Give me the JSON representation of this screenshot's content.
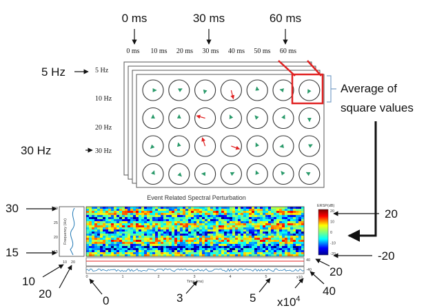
{
  "top_labels": [
    "0 ms",
    "30 ms",
    "60 ms"
  ],
  "time_row": [
    "0 ms",
    "10 ms",
    "20 ms",
    "30 ms",
    "40 ms",
    "50 ms",
    "60 ms"
  ],
  "freq_big": {
    "top": "5 Hz",
    "bottom": "30 Hz"
  },
  "freq_rows": [
    "5 Hz",
    "10 Hz",
    "20 Hz",
    "30 Hz"
  ],
  "callout": [
    "Average of",
    "square values"
  ],
  "ersp": {
    "title": "Event Related Spectral Perturbation",
    "colorbar_title": "ERSP(dB)",
    "colorbar_ticks": [
      "20",
      "10",
      "0",
      "-10",
      "-20"
    ],
    "y_axis_label": "Frequency (Hz)",
    "y_ticks": [
      "30",
      "25",
      "20",
      "15"
    ],
    "x_axis_label": "Time (ms)",
    "x_ticks": [
      "0",
      "1",
      "2",
      "3",
      "4",
      "5"
    ],
    "x_exponent": "x10",
    "side_ticks": [
      "10",
      "20"
    ],
    "bottom_ticks": [
      "-40",
      "40"
    ]
  },
  "annotations": {
    "y_top": "30",
    "y_bottom": "15",
    "left_a": "10",
    "left_b": "20",
    "x_start": "0",
    "x_mid": "3",
    "x_late": "5",
    "x_scale": "x10",
    "x_scale_exp": "4",
    "panel_range": "40",
    "panel_tick": "20",
    "cbar_top": "20",
    "cbar_bottom": "-20"
  }
}
